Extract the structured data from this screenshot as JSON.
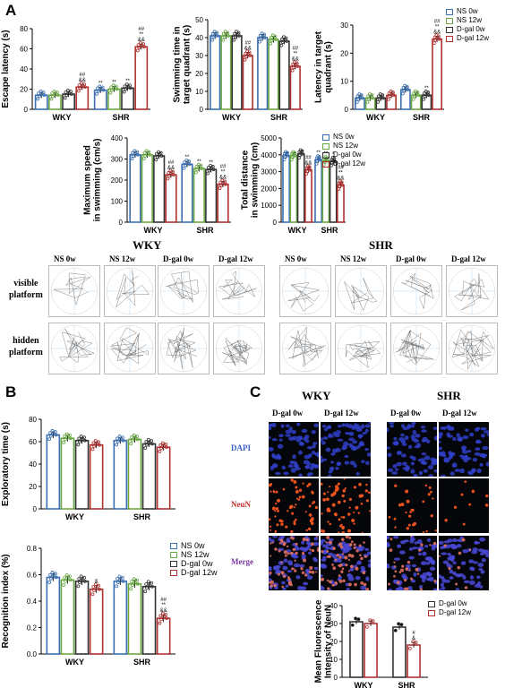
{
  "panels": {
    "a": "A",
    "b": "B",
    "c": "C"
  },
  "groups": [
    "WKY",
    "SHR"
  ],
  "treatments": [
    "NS 0w",
    "NS 12w",
    "D-gal 0w",
    "D-gal 12w"
  ],
  "treatments_c": [
    "D-gal 0w",
    "D-gal 12w"
  ],
  "colors": {
    "ns0": "#3a6fb0",
    "ns12": "#6aa843",
    "dgal0": "#333333",
    "dgal12": "#b03030"
  },
  "maze": {
    "wky_title": "WKY",
    "shr_title": "SHR",
    "columns": [
      "NS 0w",
      "NS 12w",
      "D-gal 0w",
      "D-gal 12w"
    ],
    "rows": [
      "visible\nplatform",
      "hidden\nplatform"
    ]
  },
  "micro": {
    "wky_title": "WKY",
    "shr_title": "SHR",
    "columns": [
      "D-gal 0w",
      "D-gal 12w"
    ],
    "rows": [
      "DAPI",
      "NeuN",
      "Merge"
    ],
    "row_colors": [
      "#3a5fc8",
      "#c03030",
      "#7a3aa0"
    ]
  },
  "chart_data": [
    {
      "id": "escape",
      "type": "bar",
      "ylabel": "Escape latency (s)",
      "categories": [
        "WKY",
        "SHR"
      ],
      "ylim": [
        0,
        80
      ],
      "yticks": [
        0,
        20,
        40,
        60,
        80
      ],
      "series": [
        {
          "name": "NS 0w",
          "values": [
            14,
            19
          ]
        },
        {
          "name": "NS 12w",
          "values": [
            14,
            20
          ]
        },
        {
          "name": "D-gal 0w",
          "values": [
            15,
            21
          ]
        },
        {
          "name": "D-gal 12w",
          "values": [
            22,
            62
          ]
        }
      ],
      "sig": [
        [
          [
            "",
            "",
            "",
            "##\n&&"
          ],
          [
            "**",
            "**",
            "**",
            "##\n**\n&&"
          ]
        ]
      ]
    },
    {
      "id": "quadrant",
      "type": "bar",
      "ylabel": "Swimming time in\ntarget quadrant (s)",
      "categories": [
        "WKY",
        "SHR"
      ],
      "ylim": [
        0,
        50
      ],
      "yticks": [
        0,
        10,
        20,
        30,
        40,
        50
      ],
      "series": [
        {
          "name": "NS 0w",
          "values": [
            41,
            40
          ]
        },
        {
          "name": "NS 12w",
          "values": [
            41,
            39
          ]
        },
        {
          "name": "D-gal 0w",
          "values": [
            41,
            38
          ]
        },
        {
          "name": "D-gal 12w",
          "values": [
            30,
            24
          ]
        }
      ],
      "sig": [
        [
          [
            "",
            "",
            "",
            "##\n&&"
          ],
          [
            "",
            "",
            "",
            "##\n**\n&&"
          ]
        ]
      ]
    },
    {
      "id": "latency",
      "type": "bar",
      "ylabel": "Latency in target\nquadrant (s)",
      "categories": [
        "WKY",
        "SHR"
      ],
      "ylim": [
        0,
        30
      ],
      "yticks": [
        0,
        10,
        20,
        30
      ],
      "series": [
        {
          "name": "NS 0w",
          "values": [
            4,
            7
          ]
        },
        {
          "name": "NS 12w",
          "values": [
            4,
            5
          ]
        },
        {
          "name": "D-gal 0w",
          "values": [
            4,
            5
          ]
        },
        {
          "name": "D-gal 12w",
          "values": [
            5,
            25
          ]
        }
      ],
      "sig": [
        [
          [
            "",
            "",
            "",
            ""
          ],
          [
            "",
            "",
            "**",
            "##\n**\n&&"
          ]
        ]
      ]
    },
    {
      "id": "speed",
      "type": "bar",
      "ylabel": "Maximum speed\nin swimming (cm/s)",
      "categories": [
        "WKY",
        "SHR"
      ],
      "ylim": [
        0,
        400
      ],
      "yticks": [
        0,
        100,
        200,
        300,
        400
      ],
      "series": [
        {
          "name": "NS 0w",
          "values": [
            320,
            275
          ]
        },
        {
          "name": "NS 12w",
          "values": [
            320,
            255
          ]
        },
        {
          "name": "D-gal 0w",
          "values": [
            315,
            250
          ]
        },
        {
          "name": "D-gal 12w",
          "values": [
            225,
            180
          ]
        }
      ],
      "sig": [
        [
          [
            "",
            "",
            "",
            "##\n&&"
          ],
          [
            "**",
            "**",
            "**",
            "##\n**\n&&"
          ]
        ]
      ]
    },
    {
      "id": "distance",
      "type": "bar",
      "ylabel": "Total distance\nin swimming (cm)",
      "categories": [
        "WKY",
        "SHR"
      ],
      "ylim": [
        0,
        5000
      ],
      "yticks": [
        0,
        1000,
        2000,
        3000,
        4000,
        5000
      ],
      "series": [
        {
          "name": "NS 0w",
          "values": [
            3950,
            3700
          ]
        },
        {
          "name": "NS 12w",
          "values": [
            3950,
            3650
          ]
        },
        {
          "name": "D-gal 0w",
          "values": [
            4050,
            3600
          ]
        },
        {
          "name": "D-gal 12w",
          "values": [
            3100,
            2200
          ]
        }
      ],
      "sig": [
        [
          [
            "",
            "",
            "",
            "##\n&&"
          ],
          [
            "**",
            "**",
            "*",
            "##\n**\n&&"
          ]
        ]
      ]
    },
    {
      "id": "exploratory",
      "type": "bar",
      "ylabel": "Exploratory time  (s)",
      "categories": [
        "WKY",
        "SHR"
      ],
      "ylim": [
        0,
        80
      ],
      "yticks": [
        0,
        20,
        40,
        60,
        80
      ],
      "series": [
        {
          "name": "NS 0w",
          "values": [
            66,
            61
          ]
        },
        {
          "name": "NS 12w",
          "values": [
            63,
            62
          ]
        },
        {
          "name": "D-gal 0w",
          "values": [
            61,
            58
          ]
        },
        {
          "name": "D-gal 12w",
          "values": [
            57,
            55
          ]
        }
      ],
      "sig": [
        [
          [
            "",
            "",
            "",
            ""
          ],
          [
            "",
            "",
            "",
            ""
          ]
        ]
      ]
    },
    {
      "id": "recognition",
      "type": "bar",
      "ylabel": "Recognition index (%)",
      "categories": [
        "WKY",
        "SHR"
      ],
      "ylim": [
        0,
        0.8
      ],
      "yticks": [
        0.0,
        0.2,
        0.4,
        0.6,
        0.8
      ],
      "series": [
        {
          "name": "NS 0w",
          "values": [
            0.58,
            0.55
          ]
        },
        {
          "name": "NS 12w",
          "values": [
            0.56,
            0.53
          ]
        },
        {
          "name": "D-gal 0w",
          "values": [
            0.55,
            0.51
          ]
        },
        {
          "name": "D-gal 12w",
          "values": [
            0.49,
            0.27
          ]
        }
      ],
      "sig": [
        [
          [
            "",
            "",
            "",
            "&"
          ],
          [
            "",
            "",
            "",
            "##\n**\n&&"
          ]
        ]
      ]
    },
    {
      "id": "fluor",
      "type": "bar",
      "ylabel": "Mean Fluorescence\nIntensity of NeuN",
      "categories": [
        "WKY",
        "SHR"
      ],
      "ylim": [
        0,
        40
      ],
      "yticks": [
        0,
        10,
        20,
        30,
        40
      ],
      "series": [
        {
          "name": "D-gal 0w",
          "values": [
            31,
            28
          ]
        },
        {
          "name": "D-gal 12w",
          "values": [
            30,
            18
          ]
        }
      ],
      "sig": [
        [
          [
            "",
            ""
          ],
          [
            "",
            "#\n&"
          ]
        ]
      ]
    }
  ]
}
